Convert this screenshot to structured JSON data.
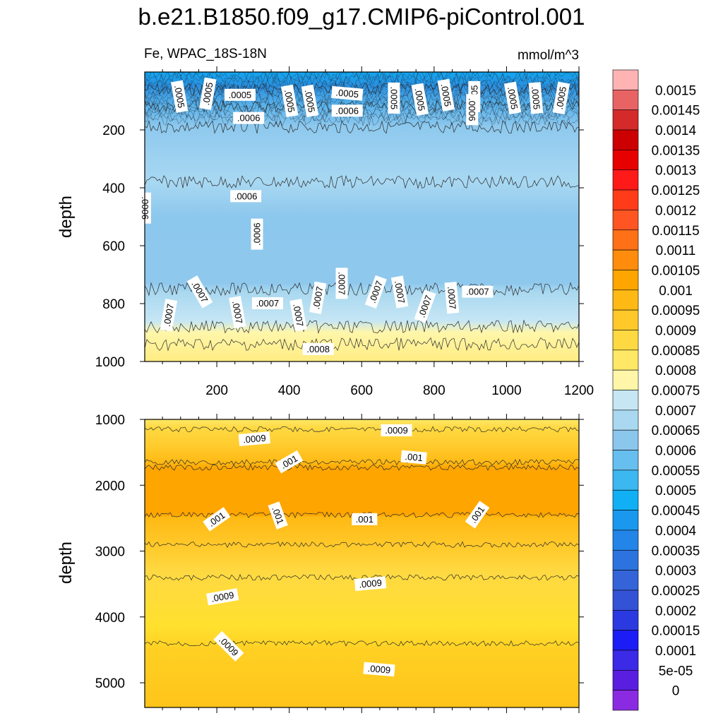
{
  "figure": {
    "title": "b.e21.B1850.f09_g17.CMIP6-piControl.001",
    "subtitle_left": "Fe, WPAC_18S-18N",
    "subtitle_right": "mmol/m^3"
  },
  "chart_data": [
    {
      "type": "heatmap",
      "panel": "upper",
      "ylabel": "depth",
      "xlabel": "",
      "x_ticks": [
        200,
        400,
        600,
        800,
        1000,
        1200
      ],
      "y_ticks": [
        200,
        400,
        600,
        800,
        1000
      ],
      "xlim": [
        1,
        1200
      ],
      "ylim": [
        1000,
        0
      ],
      "y_reversed": true,
      "level_boundaries": [
        {
          "depth": 0,
          "label": "0.0005"
        },
        {
          "depth": 60,
          "label": "0.00055"
        },
        {
          "depth": 120,
          "label": "0.0006"
        },
        {
          "depth": 190,
          "label": "0.00065"
        },
        {
          "depth": 380,
          "label": "0.00065"
        },
        {
          "depth": 750,
          "label": "0.0007"
        },
        {
          "depth": 880,
          "label": "0.00075"
        },
        {
          "depth": 940,
          "label": "0.0008"
        }
      ],
      "contour_labels": [
        {
          "x": 120,
          "depth": 85,
          "text": ".0005",
          "rotate": 80
        },
        {
          "x": 220,
          "depth": 75,
          "text": ".0005",
          "rotate": -80
        },
        {
          "x": 330,
          "depth": 80,
          "text": ".0005",
          "rotate": 0
        },
        {
          "x": 500,
          "depth": 100,
          "text": ".0005",
          "rotate": 80
        },
        {
          "x": 570,
          "depth": 100,
          "text": ".0005",
          "rotate": 80
        },
        {
          "x": 700,
          "depth": 75,
          "text": ".0005",
          "rotate": 5
        },
        {
          "x": 860,
          "depth": 90,
          "text": ".0005",
          "rotate": 90
        },
        {
          "x": 950,
          "depth": 95,
          "text": ".0005",
          "rotate": 80
        },
        {
          "x": 1040,
          "depth": 80,
          "text": ".0005",
          "rotate": 80
        },
        {
          "x": 1140,
          "depth": 85,
          "text": ".0005",
          "rotate": -90
        },
        {
          "x": 1270,
          "depth": 90,
          "text": ".0005",
          "rotate": 80
        },
        {
          "x": 1350,
          "depth": 90,
          "text": ".0005",
          "rotate": 85
        },
        {
          "x": 1440,
          "depth": 90,
          "text": ".0005",
          "rotate": -80
        },
        {
          "x": 700,
          "depth": 135,
          "text": ".0006",
          "rotate": 0
        },
        {
          "x": 360,
          "depth": 160,
          "text": ".0006",
          "rotate": 0
        },
        {
          "x": 1130,
          "depth": 130,
          "text": ".0006",
          "rotate": 90
        },
        {
          "x": 1,
          "depth": 470,
          "text": ".0006",
          "rotate": 90
        },
        {
          "x": 350,
          "depth": 430,
          "text": ".0006",
          "rotate": 0
        },
        {
          "x": 390,
          "depth": 560,
          "text": ".0006",
          "rotate": -90
        },
        {
          "x": 85,
          "depth": 840,
          "text": ".0007",
          "rotate": -80
        },
        {
          "x": 190,
          "depth": 760,
          "text": ".0007",
          "rotate": 60
        },
        {
          "x": 320,
          "depth": 830,
          "text": ".0007",
          "rotate": 80
        },
        {
          "x": 425,
          "depth": 800,
          "text": ".0007",
          "rotate": 0
        },
        {
          "x": 530,
          "depth": 840,
          "text": ".0007",
          "rotate": 80
        },
        {
          "x": 600,
          "depth": 780,
          "text": ".0007",
          "rotate": -80
        },
        {
          "x": 680,
          "depth": 730,
          "text": ".0007",
          "rotate": 90
        },
        {
          "x": 800,
          "depth": 760,
          "text": ".0007",
          "rotate": -70
        },
        {
          "x": 880,
          "depth": 760,
          "text": ".0007",
          "rotate": 80
        },
        {
          "x": 970,
          "depth": 810,
          "text": ".0007",
          "rotate": -70
        },
        {
          "x": 1060,
          "depth": 780,
          "text": ".0007",
          "rotate": 85
        },
        {
          "x": 1150,
          "depth": 760,
          "text": ".0007",
          "rotate": 0
        },
        {
          "x": 600,
          "depth": 958,
          "text": ".0008",
          "rotate": 0
        }
      ]
    },
    {
      "type": "heatmap",
      "panel": "lower",
      "ylabel": "depth",
      "xlabel": "",
      "y_ticks": [
        1000,
        2000,
        3000,
        4000,
        5000
      ],
      "xlim": [
        1,
        1200
      ],
      "ylim": [
        5375,
        1000
      ],
      "y_reversed": true,
      "level_boundaries": [
        {
          "depth": 1000,
          "label": "0.00085"
        },
        {
          "depth": 1150,
          "label": "0.0009"
        },
        {
          "depth": 1650,
          "label": "0.00095"
        },
        {
          "depth": 1730,
          "label": "0.001"
        },
        {
          "depth": 2450,
          "label": "0.00095"
        },
        {
          "depth": 2900,
          "label": "0.0009"
        },
        {
          "depth": 3400,
          "label": "0.00085"
        },
        {
          "depth": 4400,
          "label": "0.0009"
        }
      ],
      "contour_labels": [
        {
          "x": 380,
          "depth": 1300,
          "text": ".0009",
          "rotate": -5
        },
        {
          "x": 870,
          "depth": 1170,
          "text": ".0009",
          "rotate": 0
        },
        {
          "x": 500,
          "depth": 1650,
          "text": ".001",
          "rotate": -30
        },
        {
          "x": 930,
          "depth": 1580,
          "text": ".001",
          "rotate": 5
        },
        {
          "x": 250,
          "depth": 2520,
          "text": ".001",
          "rotate": -35
        },
        {
          "x": 460,
          "depth": 2460,
          "text": ".001",
          "rotate": 70
        },
        {
          "x": 760,
          "depth": 2520,
          "text": ".001",
          "rotate": 0
        },
        {
          "x": 1150,
          "depth": 2450,
          "text": ".001",
          "rotate": -55
        },
        {
          "x": 270,
          "depth": 3700,
          "text": ".0009",
          "rotate": -10
        },
        {
          "x": 780,
          "depth": 3500,
          "text": ".0009",
          "rotate": -5
        },
        {
          "x": 290,
          "depth": 4450,
          "text": ".0009",
          "rotate": 45
        },
        {
          "x": 810,
          "depth": 4800,
          "text": ".0009",
          "rotate": 5
        }
      ]
    }
  ],
  "colorbar": {
    "levels": [
      "0.0015",
      "0.00145",
      "0.0014",
      "0.00135",
      "0.0013",
      "0.00125",
      "0.0012",
      "0.00115",
      "0.0011",
      "0.00105",
      "0.001",
      "0.00095",
      "0.0009",
      "0.00085",
      "0.0008",
      "0.00075",
      "0.0007",
      "0.00065",
      "0.0006",
      "0.00055",
      "0.0005",
      "0.00045",
      "0.0004",
      "0.00035",
      "0.0003",
      "0.00025",
      "0.0002",
      "0.00015",
      "0.0001",
      "5e-05",
      "0"
    ],
    "colors": [
      "#ffb3b3",
      "#e86464",
      "#d42a2a",
      "#cc0000",
      "#e60000",
      "#ff1a1a",
      "#ff3b1a",
      "#ff5522",
      "#ff7017",
      "#ff8c0d",
      "#ffa500",
      "#ffb914",
      "#ffc92a",
      "#ffd942",
      "#ffe866",
      "#fff6aa",
      "#c6e6f4",
      "#a9d8f0",
      "#8bc6ec",
      "#66bfee",
      "#3cb7f0",
      "#11b0f4",
      "#1a98ee",
      "#2485e8",
      "#2d73df",
      "#3464d8",
      "#3452d6",
      "#2a3ae0",
      "#1c1cf6",
      "#3b2ae6",
      "#5a1ee0",
      "#8a2be2"
    ]
  }
}
